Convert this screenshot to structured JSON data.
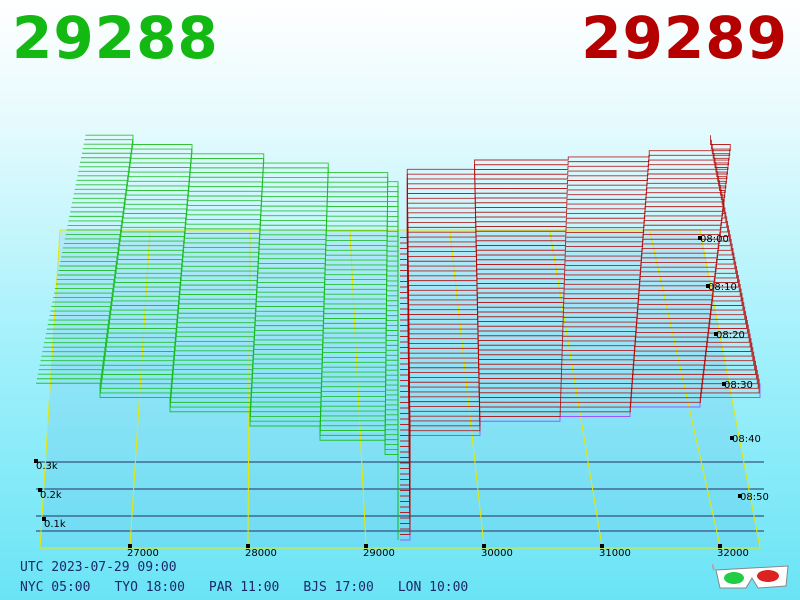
{
  "header": {
    "bid_price": "29288",
    "ask_price": "29289",
    "bid_color": "#13b813",
    "ask_color": "#b50000"
  },
  "footer": {
    "utc": "UTC 2023-07-29 09:00",
    "zones": [
      "NYC 05:00",
      "TYO 18:00",
      "PAR 11:00",
      "BJS 17:00",
      "LON 10:00"
    ]
  },
  "icons": {
    "glasses": "3d-glasses-icon"
  },
  "chart_data": {
    "type": "area",
    "title": "",
    "x_ticks": [
      "27000",
      "28000",
      "29000",
      "30000",
      "31000",
      "32000"
    ],
    "volume_ticks": [
      "0.1k",
      "0.2k",
      "0.3k"
    ],
    "time_ticks": [
      "08:00",
      "08:10",
      "08:20",
      "08:30",
      "08:40",
      "08:50"
    ],
    "mid_price": 29288.5,
    "bid_color": "#13b813",
    "ask_color": "#b50000",
    "grid_color": "#e8e800",
    "series": [
      {
        "side": "bid",
        "x": [
          26500,
          27000,
          27500,
          28000,
          28500,
          29000,
          29288
        ],
        "values": [
          330,
          300,
          270,
          240,
          210,
          180,
          0
        ]
      },
      {
        "side": "ask",
        "x": [
          29289,
          29500,
          30000,
          30500,
          31000,
          31500,
          32000
        ],
        "values": [
          0,
          220,
          250,
          260,
          280,
          300,
          330
        ]
      }
    ]
  }
}
